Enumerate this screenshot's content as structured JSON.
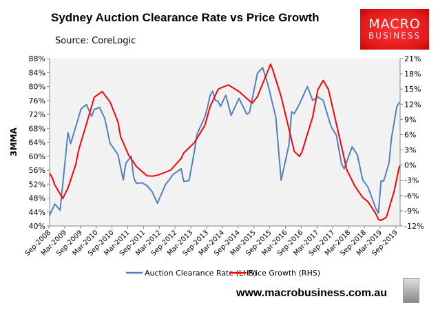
{
  "title": "Sydney Auction Clearance Rate vs Price Growth",
  "source": "Source: CoreLogic",
  "logo": {
    "line1": "MACRO",
    "line2": "BUSINESS"
  },
  "website": "www.macrobusiness.com.au",
  "chart_data": {
    "type": "line",
    "title": "Sydney Auction Clearance Rate vs Price Growth",
    "ylabel": "3MMA",
    "ylim": [
      40,
      88
    ],
    "y2lim": [
      -12,
      21
    ],
    "yticks": [
      "40%",
      "44%",
      "48%",
      "52%",
      "56%",
      "60%",
      "64%",
      "68%",
      "72%",
      "76%",
      "80%",
      "84%",
      "88%"
    ],
    "y2ticks": [
      "-12%",
      "-9%",
      "-6%",
      "-3%",
      "0%",
      "3%",
      "6%",
      "9%",
      "12%",
      "15%",
      "18%",
      "21%"
    ],
    "xticks": [
      "Sep-2008",
      "Mar-2009",
      "Sep-2009",
      "Mar-2010",
      "Sep-2010",
      "Mar-2011",
      "Sep-2011",
      "Mar-2012",
      "Sep-2012",
      "Mar-2013",
      "Sep-2013",
      "Mar-2014",
      "Sep-2014",
      "Mar-2015",
      "Sep-2015",
      "Mar-2016",
      "Sep-2016",
      "Mar-2017",
      "Sep-2017",
      "Mar-2018",
      "Sep-2018",
      "Mar-2019",
      "Sep-2019"
    ],
    "legend_position": "bottom",
    "grid": false,
    "series": [
      {
        "name": "Auction Clearance Rate (LHS)",
        "axis": "left",
        "color": "#4f81bd",
        "points": [
          [
            "2008-09",
            43.0
          ],
          [
            "2008-11",
            46.3
          ],
          [
            "2009-01",
            44.5
          ],
          [
            "2009-04",
            66.7
          ],
          [
            "2009-05",
            63.6
          ],
          [
            "2009-09",
            73.6
          ],
          [
            "2009-11",
            74.8
          ],
          [
            "2010-01",
            71.4
          ],
          [
            "2010-02",
            73.4
          ],
          [
            "2010-04",
            74.0
          ],
          [
            "2010-06",
            70.8
          ],
          [
            "2010-08",
            63.6
          ],
          [
            "2010-10",
            61.6
          ],
          [
            "2010-11",
            60.4
          ],
          [
            "2011-01",
            53.2
          ],
          [
            "2011-02",
            58.0
          ],
          [
            "2011-04",
            60.0
          ],
          [
            "2011-05",
            53.8
          ],
          [
            "2011-06",
            52.2
          ],
          [
            "2011-08",
            52.4
          ],
          [
            "2011-10",
            51.6
          ],
          [
            "2011-12",
            49.8
          ],
          [
            "2012-02",
            46.5
          ],
          [
            "2012-05",
            51.8
          ],
          [
            "2012-08",
            54.8
          ],
          [
            "2012-11",
            56.4
          ],
          [
            "2012-12",
            52.8
          ],
          [
            "2013-02",
            53.0
          ],
          [
            "2013-04",
            61.2
          ],
          [
            "2013-05",
            66.2
          ],
          [
            "2013-08",
            71.2
          ],
          [
            "2013-09",
            74.0
          ],
          [
            "2013-10",
            77.4
          ],
          [
            "2013-11",
            78.7
          ],
          [
            "2013-12",
            76.0
          ],
          [
            "2014-01",
            75.8
          ],
          [
            "2014-02",
            74.3
          ],
          [
            "2014-04",
            77.5
          ],
          [
            "2014-06",
            71.7
          ],
          [
            "2014-09",
            76.6
          ],
          [
            "2014-12",
            72.0
          ],
          [
            "2015-01",
            72.6
          ],
          [
            "2015-04",
            83.8
          ],
          [
            "2015-06",
            85.4
          ],
          [
            "2015-08",
            80.5
          ],
          [
            "2015-11",
            71.2
          ],
          [
            "2016-01",
            53.1
          ],
          [
            "2016-04",
            63.3
          ],
          [
            "2016-05",
            72.8
          ],
          [
            "2016-06",
            72.2
          ],
          [
            "2016-08",
            75.0
          ],
          [
            "2016-11",
            80.0
          ],
          [
            "2017-01",
            76.0
          ],
          [
            "2017-03",
            77.0
          ],
          [
            "2017-05",
            76.0
          ],
          [
            "2017-08",
            68.5
          ],
          [
            "2017-10",
            66.0
          ],
          [
            "2017-12",
            57.7
          ],
          [
            "2018-01",
            56.4
          ],
          [
            "2018-04",
            62.7
          ],
          [
            "2018-06",
            60.4
          ],
          [
            "2018-08",
            53.2
          ],
          [
            "2018-10",
            51.2
          ],
          [
            "2019-01",
            45.0
          ],
          [
            "2019-02",
            43.7
          ],
          [
            "2019-03",
            52.9
          ],
          [
            "2019-04",
            52.9
          ],
          [
            "2019-06",
            58.0
          ],
          [
            "2019-07",
            65.4
          ],
          [
            "2019-09",
            74.2
          ],
          [
            "2019-10",
            75.5
          ]
        ]
      },
      {
        "name": "Price Growth (RHS)",
        "axis": "right",
        "color": "#ff0000",
        "points": [
          [
            "2008-09",
            -1.6
          ],
          [
            "2008-10",
            -2.5
          ],
          [
            "2008-11",
            -3.9
          ],
          [
            "2009-02",
            -6.6
          ],
          [
            "2009-04",
            -4.5
          ],
          [
            "2009-07",
            0.2
          ],
          [
            "2009-08",
            2.9
          ],
          [
            "2009-11",
            8.1
          ],
          [
            "2010-02",
            13.4
          ],
          [
            "2010-05",
            14.5
          ],
          [
            "2010-08",
            12.4
          ],
          [
            "2010-11",
            8.5
          ],
          [
            "2010-12",
            5.6
          ],
          [
            "2011-03",
            2.0
          ],
          [
            "2011-06",
            -0.3
          ],
          [
            "2011-10",
            -2.1
          ],
          [
            "2011-12",
            -2.2
          ],
          [
            "2012-02",
            -2.0
          ],
          [
            "2012-07",
            -1.0
          ],
          [
            "2012-11",
            1.3
          ],
          [
            "2012-12",
            2.4
          ],
          [
            "2013-04",
            4.4
          ],
          [
            "2013-08",
            7.8
          ],
          [
            "2013-10",
            11.5
          ],
          [
            "2014-01",
            14.9
          ],
          [
            "2014-02",
            15.2
          ],
          [
            "2014-05",
            15.8
          ],
          [
            "2014-09",
            14.5
          ],
          [
            "2015-02",
            12.2
          ],
          [
            "2015-04",
            13.5
          ],
          [
            "2015-09",
            19.9
          ],
          [
            "2015-10",
            18.5
          ],
          [
            "2016-01",
            13.5
          ],
          [
            "2016-04",
            7.1
          ],
          [
            "2016-06",
            2.7
          ],
          [
            "2016-08",
            1.7
          ],
          [
            "2016-09",
            2.7
          ],
          [
            "2017-01",
            9.5
          ],
          [
            "2017-03",
            14.9
          ],
          [
            "2017-05",
            16.7
          ],
          [
            "2017-07",
            14.9
          ],
          [
            "2017-09",
            10.4
          ],
          [
            "2017-12",
            3.6
          ],
          [
            "2018-02",
            -1.0
          ],
          [
            "2018-05",
            -4.1
          ],
          [
            "2018-08",
            -6.4
          ],
          [
            "2018-10",
            -7.2
          ],
          [
            "2019-01",
            -9.6
          ],
          [
            "2019-02",
            -10.7
          ],
          [
            "2019-03",
            -10.9
          ],
          [
            "2019-05",
            -10.3
          ],
          [
            "2019-08",
            -5.1
          ],
          [
            "2019-10",
            -0.1
          ]
        ]
      }
    ]
  }
}
